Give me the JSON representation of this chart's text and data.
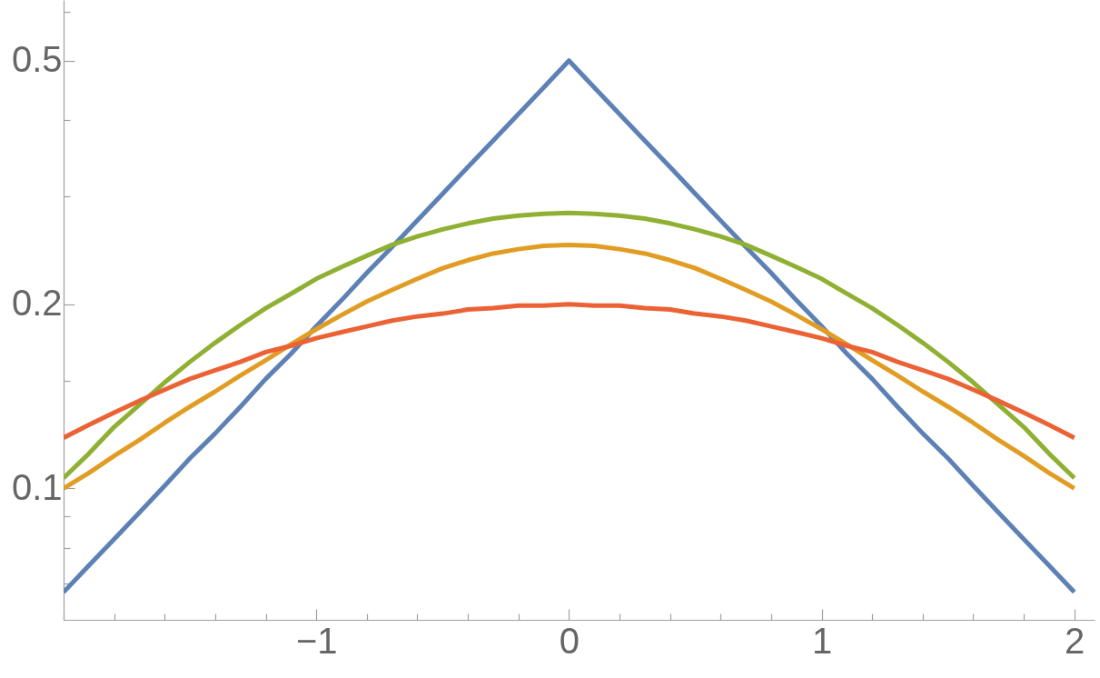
{
  "chart_data": {
    "type": "line",
    "log": "y",
    "x": [
      -2,
      -1.9,
      -1.8,
      -1.7,
      -1.6,
      -1.5,
      -1.4,
      -1.3,
      -1.2,
      -1.1,
      -1,
      -0.9,
      -0.8,
      -0.7,
      -0.6,
      -0.5,
      -0.4,
      -0.3,
      -0.2,
      -0.1,
      0,
      0.1,
      0.2,
      0.3,
      0.4,
      0.5,
      0.6,
      0.7,
      0.8,
      0.9,
      1,
      1.1,
      1.2,
      1.3,
      1.4,
      1.5,
      1.6,
      1.7,
      1.8,
      1.9,
      2
    ],
    "series": [
      {
        "color": "#5e81b5",
        "values": [
          0.0677,
          0.0748,
          0.0826,
          0.0913,
          0.101,
          0.112,
          0.123,
          0.136,
          0.151,
          0.166,
          0.184,
          0.203,
          0.225,
          0.248,
          0.274,
          0.303,
          0.335,
          0.37,
          0.409,
          0.452,
          0.5,
          0.452,
          0.409,
          0.37,
          0.335,
          0.303,
          0.274,
          0.248,
          0.225,
          0.203,
          0.184,
          0.166,
          0.151,
          0.136,
          0.123,
          0.112,
          0.101,
          0.0913,
          0.0826,
          0.0748,
          0.0677
        ]
      },
      {
        "color": "#e19c24",
        "values": [
          0.1,
          0.106,
          0.113,
          0.12,
          0.128,
          0.136,
          0.144,
          0.153,
          0.162,
          0.172,
          0.182,
          0.192,
          0.202,
          0.211,
          0.22,
          0.229,
          0.236,
          0.242,
          0.246,
          0.249,
          0.25,
          0.249,
          0.246,
          0.242,
          0.236,
          0.229,
          0.22,
          0.211,
          0.202,
          0.192,
          0.182,
          0.172,
          0.162,
          0.153,
          0.144,
          0.136,
          0.128,
          0.12,
          0.113,
          0.106,
          0.1
        ]
      },
      {
        "color": "#8fb032",
        "values": [
          0.104,
          0.114,
          0.126,
          0.137,
          0.149,
          0.161,
          0.173,
          0.185,
          0.197,
          0.208,
          0.22,
          0.23,
          0.24,
          0.25,
          0.258,
          0.265,
          0.271,
          0.276,
          0.279,
          0.281,
          0.282,
          0.281,
          0.279,
          0.276,
          0.271,
          0.265,
          0.258,
          0.25,
          0.24,
          0.23,
          0.22,
          0.208,
          0.197,
          0.185,
          0.173,
          0.161,
          0.149,
          0.137,
          0.126,
          0.114,
          0.104
        ]
      },
      {
        "color": "#eb6235",
        "values": [
          0.121,
          0.127,
          0.133,
          0.139,
          0.145,
          0.151,
          0.156,
          0.161,
          0.167,
          0.171,
          0.176,
          0.18,
          0.184,
          0.188,
          0.191,
          0.193,
          0.196,
          0.197,
          0.199,
          0.199,
          0.2,
          0.199,
          0.199,
          0.197,
          0.196,
          0.193,
          0.191,
          0.188,
          0.184,
          0.18,
          0.176,
          0.171,
          0.167,
          0.161,
          0.156,
          0.151,
          0.145,
          0.139,
          0.133,
          0.127,
          0.121
        ]
      }
    ],
    "xlim": [
      -2,
      2.08
    ],
    "ylim": [
      0.061,
      0.628
    ],
    "xticks": [
      {
        "value": -2,
        "label": null
      },
      {
        "value": -1.8,
        "label": null
      },
      {
        "value": -1.6,
        "label": null
      },
      {
        "value": -1.4,
        "label": null
      },
      {
        "value": -1.2,
        "label": null
      },
      {
        "value": -1,
        "label": "−1"
      },
      {
        "value": -0.8,
        "label": null
      },
      {
        "value": -0.6,
        "label": null
      },
      {
        "value": -0.4,
        "label": null
      },
      {
        "value": -0.2,
        "label": null
      },
      0,
      {
        "value": 0.2,
        "label": null
      },
      {
        "value": 0.4,
        "label": null
      },
      {
        "value": 0.6,
        "label": null
      },
      {
        "value": 0.8,
        "label": null
      },
      1,
      {
        "value": 1.2,
        "label": null
      },
      {
        "value": 1.4,
        "label": null
      },
      {
        "value": 1.6,
        "label": null
      },
      {
        "value": 1.8,
        "label": null
      },
      2
    ],
    "yticks": [
      {
        "value": 0.07,
        "label": null
      },
      {
        "value": 0.08,
        "label": null
      },
      {
        "value": 0.09,
        "label": null
      },
      0.1,
      {
        "value": 0.15,
        "label": null
      },
      0.2,
      {
        "value": 0.3,
        "label": null
      },
      {
        "value": 0.4,
        "label": null
      },
      0.5,
      {
        "value": 0.6,
        "label": null
      }
    ]
  }
}
